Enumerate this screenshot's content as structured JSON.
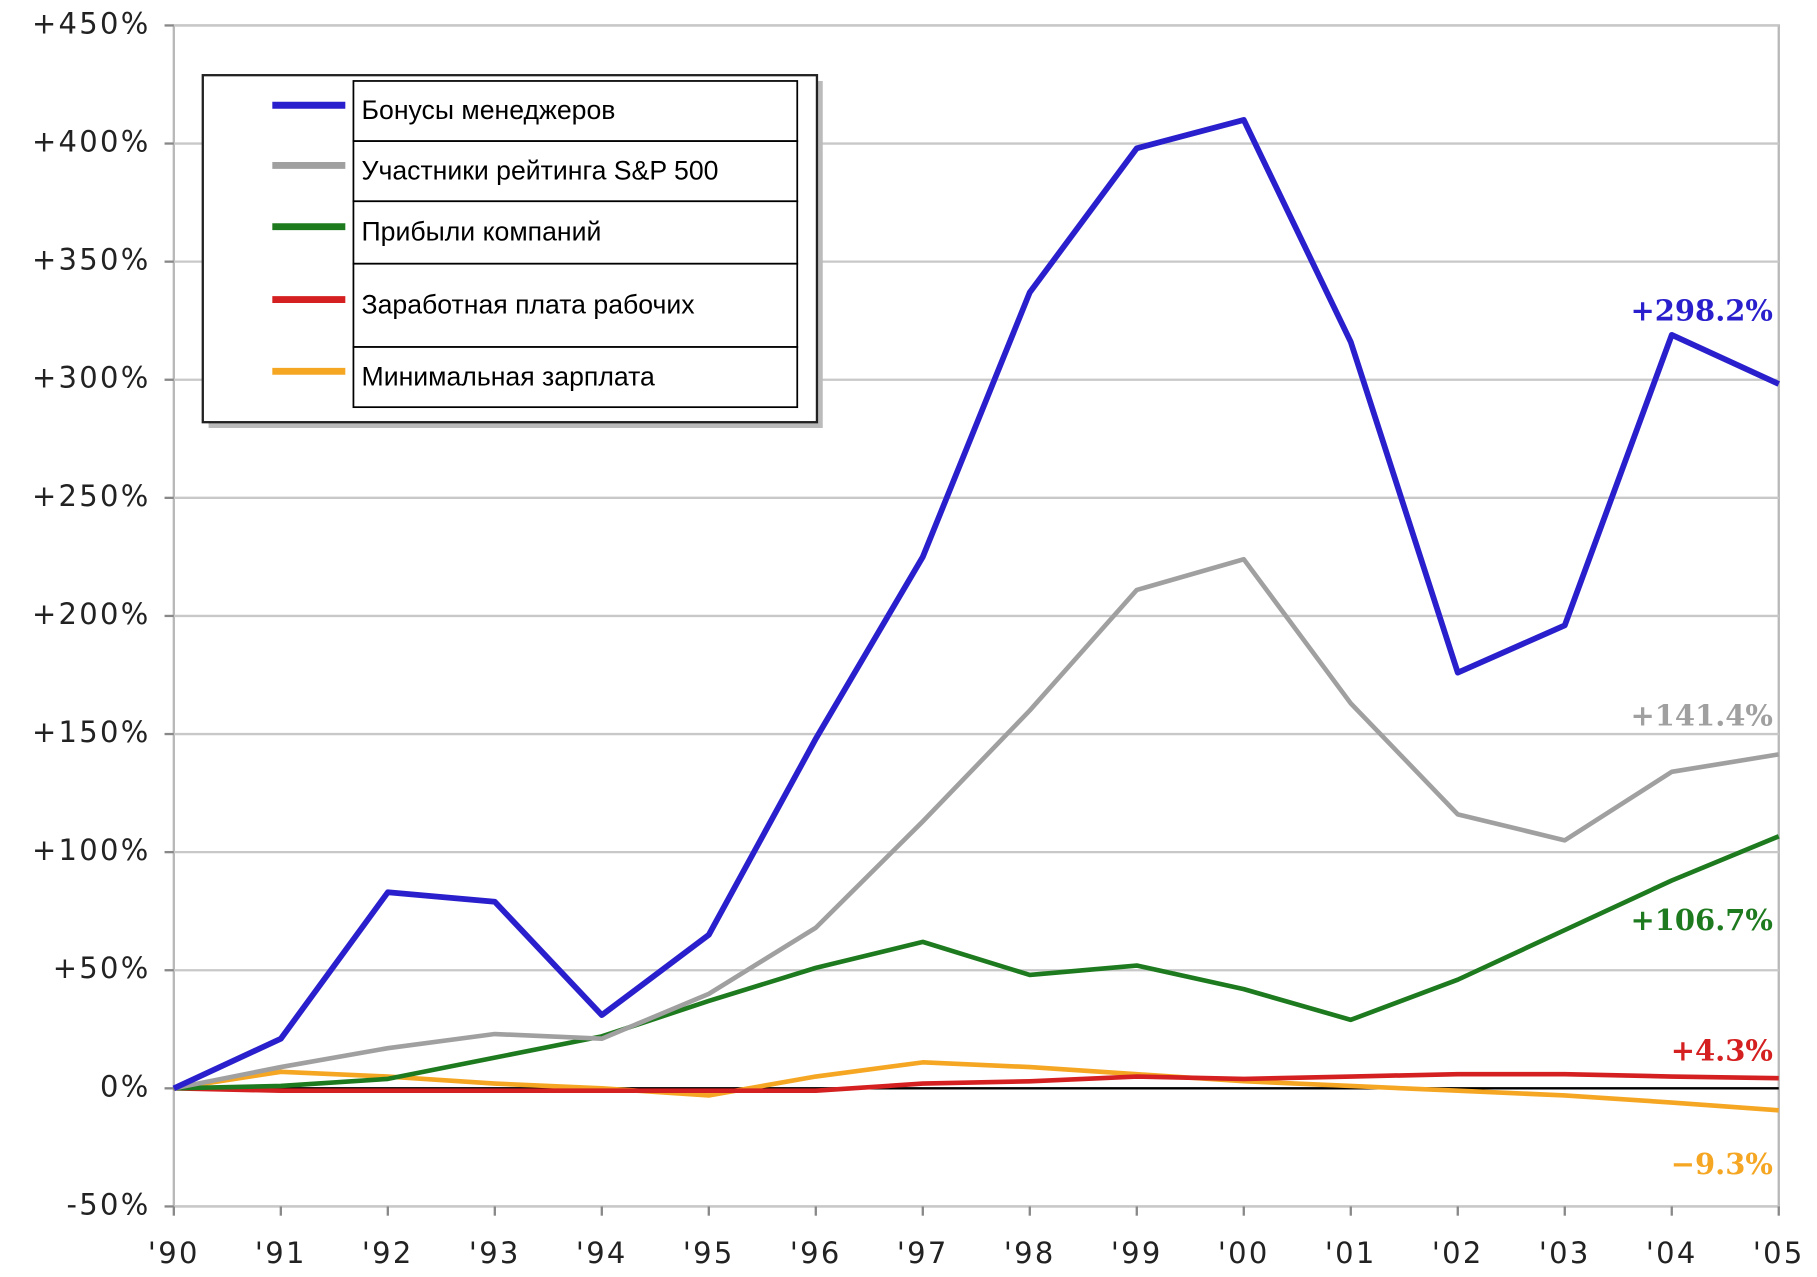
{
  "chart_data": {
    "type": "line",
    "categories": [
      "'90",
      "'91",
      "'92",
      "'93",
      "'94",
      "'95",
      "'96",
      "'97",
      "'98",
      "'99",
      "'00",
      "'01",
      "'02",
      "'03",
      "'04",
      "'05"
    ],
    "series": [
      {
        "name": "Бонусы менеджеров",
        "color": "#2a1fcc",
        "values": [
          0,
          21,
          83,
          79,
          31,
          65,
          148,
          225,
          337,
          398,
          410,
          316,
          176,
          196,
          319,
          298.2
        ],
        "value_labels": [
          null,
          null,
          null,
          null,
          null,
          null,
          null,
          null,
          null,
          null,
          null,
          null,
          null,
          null,
          null,
          "+298.2%"
        ]
      },
      {
        "name": "Участники рейтинга S&P 500",
        "color": "#a0a0a0",
        "values": [
          0,
          9,
          17,
          23,
          21,
          40,
          68,
          113,
          160,
          211,
          224,
          163,
          116,
          105,
          134,
          141.4
        ],
        "value_labels": [
          null,
          null,
          null,
          null,
          null,
          null,
          null,
          null,
          null,
          null,
          null,
          null,
          null,
          null,
          null,
          "+141.4%"
        ]
      },
      {
        "name": "Прибыли компаний",
        "color": "#1e7a1e",
        "values": [
          0,
          1,
          4,
          13,
          22,
          37,
          51,
          62,
          48,
          52,
          42,
          29,
          46,
          67,
          88,
          106.7
        ],
        "value_labels": [
          null,
          null,
          null,
          null,
          null,
          null,
          null,
          null,
          null,
          null,
          null,
          null,
          null,
          null,
          null,
          "+106.7%"
        ]
      },
      {
        "name": "Заработная плата рабочих",
        "color": "#d42020",
        "values": [
          0,
          -1,
          -1,
          -1,
          -1,
          -1,
          -1,
          2,
          3,
          5,
          4,
          5,
          6,
          6,
          5,
          4.3
        ],
        "value_labels": [
          null,
          null,
          null,
          null,
          null,
          null,
          null,
          null,
          null,
          null,
          null,
          null,
          null,
          null,
          null,
          "+4.3%"
        ]
      },
      {
        "name": "Минимальная зарплата",
        "color": "#f5a623",
        "values": [
          0,
          7,
          5,
          2,
          0,
          -3,
          5,
          11,
          9,
          6,
          3,
          1,
          -1,
          -3,
          -6,
          -9.3
        ],
        "value_labels": [
          null,
          null,
          null,
          null,
          null,
          null,
          null,
          null,
          null,
          null,
          null,
          null,
          null,
          null,
          null,
          "−9.3%"
        ]
      }
    ],
    "ylim": [
      -50,
      450
    ],
    "yticks": [
      {
        "value": -50,
        "label": "-50%"
      },
      {
        "value": 0,
        "label": "0%"
      },
      {
        "value": 50,
        "label": "+50%"
      },
      {
        "value": 100,
        "label": "+100%"
      },
      {
        "value": 150,
        "label": "+150%"
      },
      {
        "value": 200,
        "label": "+200%"
      },
      {
        "value": 250,
        "label": "+250%"
      },
      {
        "value": 300,
        "label": "+300%"
      },
      {
        "value": 350,
        "label": "+350%"
      },
      {
        "value": 400,
        "label": "+400%"
      },
      {
        "value": 450,
        "label": "+450%"
      }
    ],
    "grid": true,
    "legend": "upper left"
  }
}
